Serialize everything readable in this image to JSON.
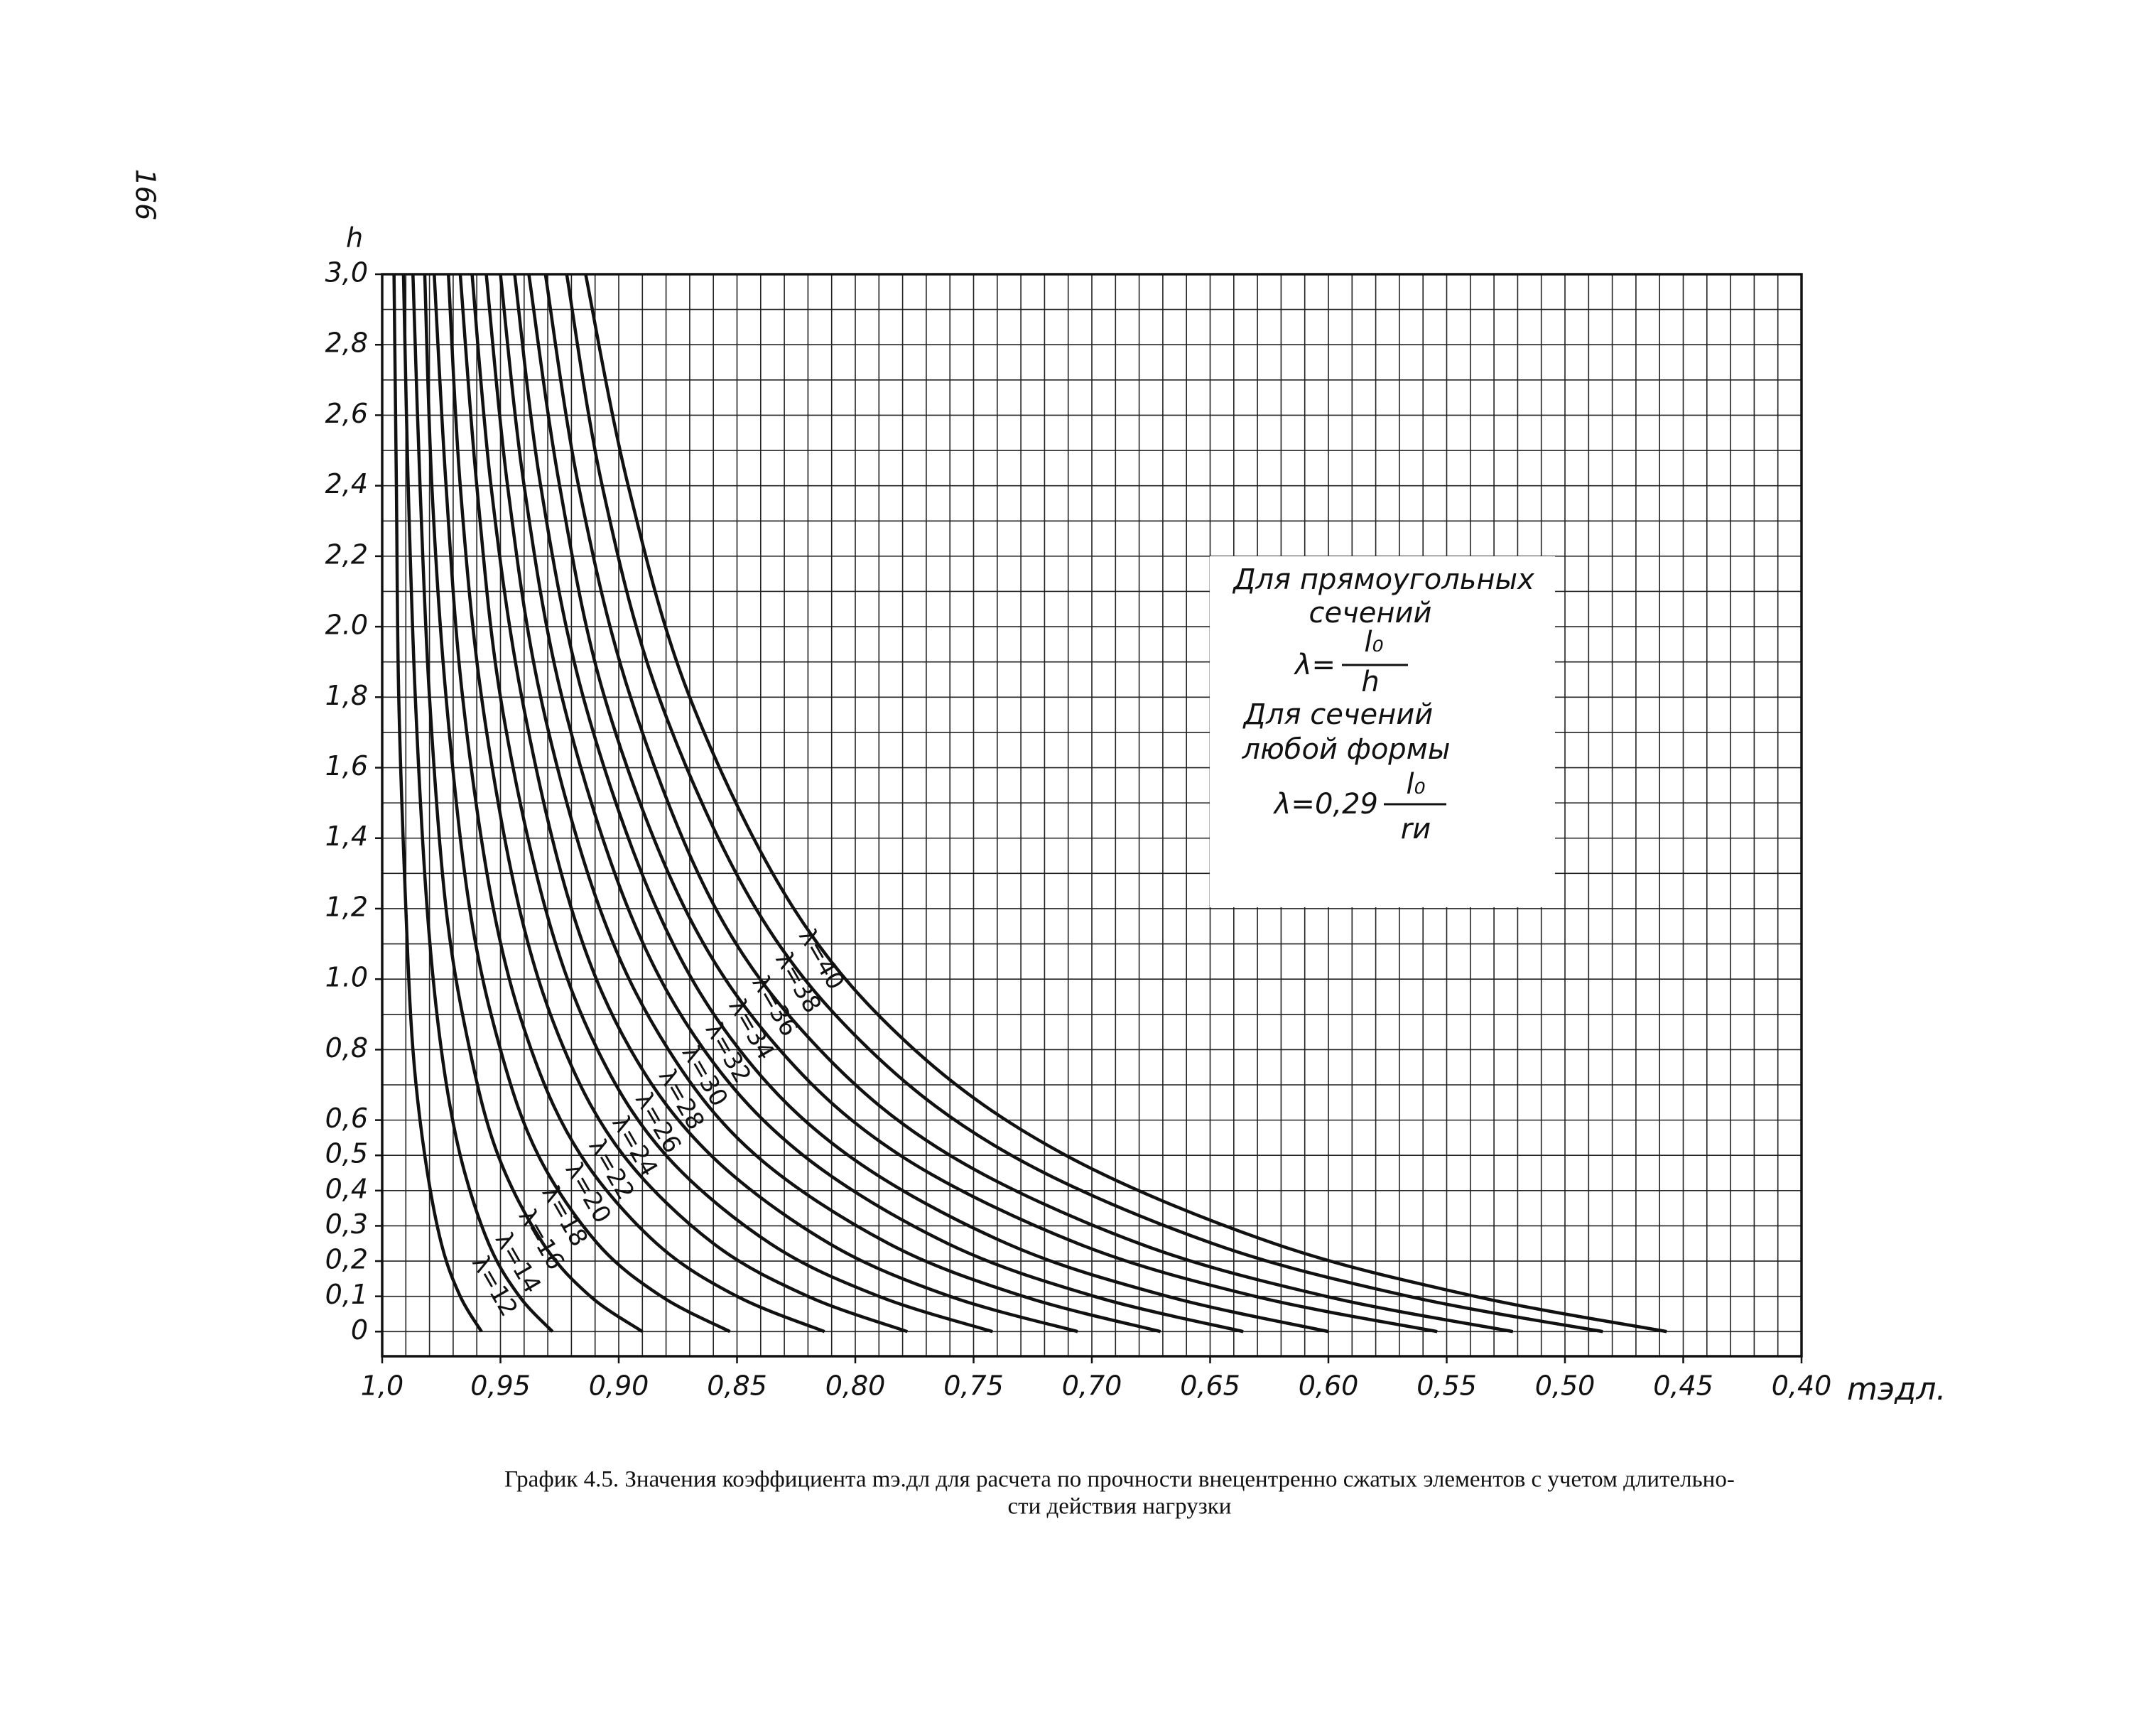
{
  "page_number": "166",
  "chart_data": {
    "type": "line",
    "x_label": "mэдл.",
    "y_label": "h",
    "xlim": [
      1.0,
      0.4
    ],
    "ylim": [
      -0.07,
      3.0
    ],
    "xticks": [
      {
        "value": 1.0,
        "label": "1,0"
      },
      {
        "value": 0.95,
        "label": "0,95"
      },
      {
        "value": 0.9,
        "label": "0,90"
      },
      {
        "value": 0.85,
        "label": "0,85"
      },
      {
        "value": 0.8,
        "label": "0,80"
      },
      {
        "value": 0.75,
        "label": "0,75"
      },
      {
        "value": 0.7,
        "label": "0,70"
      },
      {
        "value": 0.65,
        "label": "0,65"
      },
      {
        "value": 0.6,
        "label": "0,60"
      },
      {
        "value": 0.55,
        "label": "0,55"
      },
      {
        "value": 0.5,
        "label": "0,50"
      },
      {
        "value": 0.45,
        "label": "0,45"
      },
      {
        "value": 0.4,
        "label": "0,40"
      }
    ],
    "yticks": [
      {
        "value": 3.0,
        "label": "3,0"
      },
      {
        "value": 2.8,
        "label": "2,8"
      },
      {
        "value": 2.6,
        "label": "2,6"
      },
      {
        "value": 2.4,
        "label": "2,4"
      },
      {
        "value": 2.2,
        "label": "2,2"
      },
      {
        "value": 2.0,
        "label": "2.0"
      },
      {
        "value": 1.8,
        "label": "1,8"
      },
      {
        "value": 1.6,
        "label": "1,6"
      },
      {
        "value": 1.4,
        "label": "1,4"
      },
      {
        "value": 1.2,
        "label": "1,2"
      },
      {
        "value": 1.0,
        "label": "1.0"
      },
      {
        "value": 0.8,
        "label": "0,8"
      },
      {
        "value": 0.6,
        "label": "0,6"
      },
      {
        "value": 0.5,
        "label": "0,5"
      },
      {
        "value": 0.4,
        "label": "0,4"
      },
      {
        "value": 0.3,
        "label": "0,3"
      },
      {
        "value": 0.2,
        "label": "0,2"
      },
      {
        "value": 0.1,
        "label": "0,1"
      },
      0
    ],
    "x_grid": [
      1.0,
      0.99,
      0.98,
      0.97,
      0.96,
      0.95,
      0.94,
      0.93,
      0.92,
      0.91,
      0.9,
      0.89,
      0.88,
      0.87,
      0.86,
      0.85,
      0.84,
      0.83,
      0.82,
      0.81,
      0.8,
      0.79,
      0.78,
      0.77,
      0.76,
      0.75,
      0.74,
      0.73,
      0.72,
      0.71,
      0.7,
      0.69,
      0.68,
      0.67,
      0.66,
      0.65,
      0.64,
      0.63,
      0.62,
      0.61,
      0.6,
      0.59,
      0.58,
      0.57,
      0.56,
      0.55,
      0.54,
      0.53,
      0.52,
      0.51,
      0.5,
      0.49,
      0.48,
      0.47,
      0.46,
      0.45,
      0.44,
      0.43,
      0.42,
      0.41,
      0.4
    ],
    "y_grid": [
      0,
      0.1,
      0.2,
      0.3,
      0.4,
      0.5,
      0.6,
      0.7,
      0.8,
      0.9,
      1.0,
      1.1,
      1.2,
      1.3,
      1.4,
      1.5,
      1.6,
      1.7,
      1.8,
      1.9,
      2.0,
      2.1,
      2.2,
      2.3,
      2.4,
      2.5,
      2.6,
      2.7,
      2.8,
      2.9,
      3.0
    ],
    "grid": true,
    "color": "#111111",
    "series": [
      {
        "name": "λ=12",
        "x": [
          0.958,
          0.967,
          0.975,
          0.982,
          0.987,
          0.99,
          0.993,
          0.994,
          0.995
        ],
        "values": [
          0,
          0.1,
          0.25,
          0.5,
          0.8,
          1.2,
          1.8,
          2.4,
          3.0
        ]
      },
      {
        "name": "λ=14",
        "x": [
          0.928,
          0.942,
          0.955,
          0.967,
          0.975,
          0.981,
          0.986,
          0.989,
          0.991
        ],
        "values": [
          0,
          0.1,
          0.25,
          0.5,
          0.8,
          1.2,
          1.8,
          2.4,
          3.0
        ]
      },
      {
        "name": "λ=16",
        "x": [
          0.89,
          0.912,
          0.932,
          0.951,
          0.963,
          0.973,
          0.98,
          0.984,
          0.987
        ],
        "values": [
          0,
          0.1,
          0.25,
          0.5,
          0.8,
          1.2,
          1.8,
          2.4,
          3.0
        ]
      },
      {
        "name": "λ=18",
        "x": [
          0.853,
          0.882,
          0.909,
          0.934,
          0.95,
          0.963,
          0.973,
          0.979,
          0.982
        ],
        "values": [
          0,
          0.1,
          0.25,
          0.5,
          0.8,
          1.2,
          1.8,
          2.4,
          3.0
        ]
      },
      {
        "name": "λ=20",
        "x": [
          0.813,
          0.85,
          0.884,
          0.916,
          0.937,
          0.953,
          0.966,
          0.973,
          0.978
        ],
        "values": [
          0,
          0.1,
          0.25,
          0.5,
          0.8,
          1.2,
          1.8,
          2.4,
          3.0
        ]
      },
      {
        "name": "λ=22",
        "x": [
          0.778,
          0.82,
          0.86,
          0.898,
          0.923,
          0.942,
          0.958,
          0.967,
          0.972
        ],
        "values": [
          0,
          0.1,
          0.25,
          0.5,
          0.8,
          1.2,
          1.8,
          2.4,
          3.0
        ]
      },
      {
        "name": "λ=24",
        "x": [
          0.742,
          0.79,
          0.836,
          0.88,
          0.909,
          0.931,
          0.95,
          0.96,
          0.967
        ],
        "values": [
          0,
          0.1,
          0.25,
          0.5,
          0.8,
          1.2,
          1.8,
          2.4,
          3.0
        ]
      },
      {
        "name": "λ=26",
        "x": [
          0.706,
          0.76,
          0.811,
          0.861,
          0.895,
          0.92,
          0.941,
          0.954,
          0.962
        ],
        "values": [
          0,
          0.1,
          0.25,
          0.5,
          0.8,
          1.2,
          1.8,
          2.4,
          3.0
        ]
      },
      {
        "name": "λ=28",
        "x": [
          0.671,
          0.729,
          0.786,
          0.842,
          0.879,
          0.908,
          0.933,
          0.947,
          0.956
        ],
        "values": [
          0,
          0.1,
          0.25,
          0.5,
          0.8,
          1.2,
          1.8,
          2.4,
          3.0
        ]
      },
      {
        "name": "λ=30",
        "x": [
          0.636,
          0.699,
          0.761,
          0.822,
          0.864,
          0.896,
          0.924,
          0.94,
          0.95
        ],
        "values": [
          0,
          0.1,
          0.25,
          0.5,
          0.8,
          1.2,
          1.8,
          2.4,
          3.0
        ]
      },
      {
        "name": "λ=32",
        "x": [
          0.6,
          0.668,
          0.736,
          0.803,
          0.849,
          0.884,
          0.915,
          0.933,
          0.944
        ],
        "values": [
          0,
          0.1,
          0.25,
          0.5,
          0.8,
          1.2,
          1.8,
          2.4,
          3.0
        ]
      },
      {
        "name": "λ=34",
        "x": [
          0.554,
          0.631,
          0.706,
          0.781,
          0.832,
          0.872,
          0.906,
          0.925,
          0.938
        ],
        "values": [
          0,
          0.1,
          0.25,
          0.5,
          0.8,
          1.2,
          1.8,
          2.4,
          3.0
        ]
      },
      {
        "name": "λ=36",
        "x": [
          0.522,
          0.601,
          0.68,
          0.76,
          0.815,
          0.859,
          0.895,
          0.917,
          0.931
        ],
        "values": [
          0,
          0.1,
          0.25,
          0.5,
          0.8,
          1.2,
          1.8,
          2.4,
          3.0
        ]
      },
      {
        "name": "λ=38",
        "x": [
          0.484,
          0.566,
          0.649,
          0.734,
          0.794,
          0.842,
          0.883,
          0.907,
          0.922
        ],
        "values": [
          0,
          0.1,
          0.25,
          0.5,
          0.8,
          1.2,
          1.8,
          2.4,
          3.0
        ]
      },
      {
        "name": "λ=40",
        "x": [
          0.457,
          0.538,
          0.623,
          0.711,
          0.775,
          0.826,
          0.87,
          0.896,
          0.914
        ],
        "values": [
          0,
          0.1,
          0.25,
          0.5,
          0.8,
          1.2,
          1.8,
          2.4,
          3.0
        ]
      }
    ],
    "annotation": {
      "title1": "Для прямоугольных",
      "title2": "сечений",
      "formula1_lhs": "λ=",
      "formula1_num": "l₀",
      "formula1_den": "h",
      "title3": "Для сечений",
      "title4": "любой формы",
      "formula2_lhs": "λ=0,29",
      "formula2_num": "l₀",
      "formula2_den": "rи"
    }
  },
  "caption": [
    "График 4.5. Значения коэффициента mэ.дл для расчета по прочности внецентренно сжатых элементов с учетом длительно-",
    "сти действия нагрузки"
  ]
}
